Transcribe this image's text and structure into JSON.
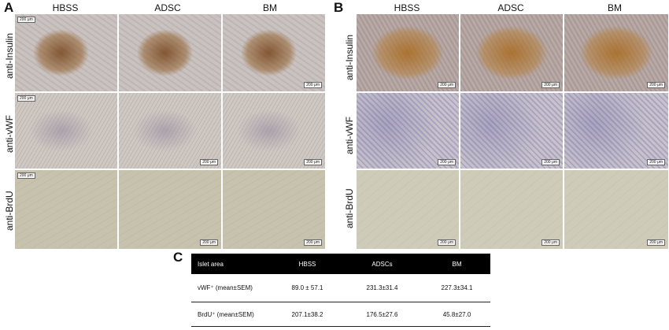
{
  "panels": {
    "a": "A",
    "b": "B",
    "c": "C"
  },
  "columns": [
    "HBSS",
    "ADSC",
    "BM"
  ],
  "rows": [
    "anti-Insulin",
    "anti-vWF",
    "anti-BrdU"
  ],
  "scale_bar": "200 μm",
  "table": {
    "headers": [
      "Islet area",
      "HBSS",
      "ADSCs",
      "BM"
    ],
    "rows": [
      [
        "vWF⁺ (mean±SEM)",
        "89.0 ± 57.1",
        "231.3±31.4",
        "227.3±34.1"
      ],
      [
        "BrdU⁺ (mean±SEM)",
        "207.1±38.2",
        "176.5±27.6",
        "45.8±27.0"
      ]
    ]
  }
}
